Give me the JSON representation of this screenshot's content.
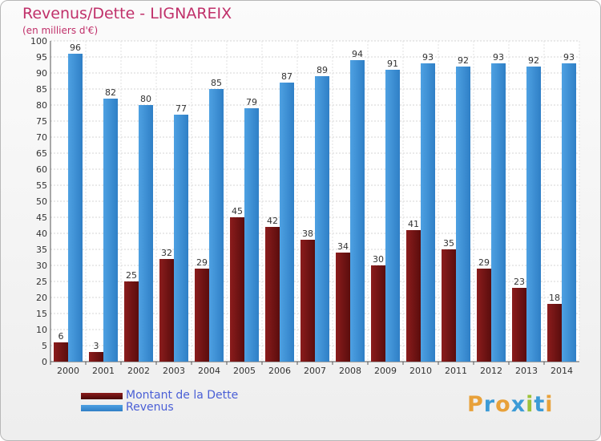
{
  "title": "Revenus/Dette - LIGNAREIX",
  "subtitle": "(en milliers d'€)",
  "logo": {
    "text": "Proxiti",
    "letters": [
      {
        "ch": "P",
        "color": "#e8a13a"
      },
      {
        "ch": "r",
        "color": "#3c9bd6"
      },
      {
        "ch": "o",
        "color": "#e8a13a"
      },
      {
        "ch": "x",
        "color": "#3c9bd6"
      },
      {
        "ch": "i",
        "color": "#9cc23a"
      },
      {
        "ch": "t",
        "color": "#3c9bd6"
      },
      {
        "ch": "i",
        "color": "#e8a13a"
      }
    ]
  },
  "colors": {
    "debt": "#8b1c1c",
    "revenue": "#4ea1e2"
  },
  "chart_data": {
    "type": "bar",
    "title": "Revenus/Dette - LIGNAREIX",
    "subtitle": "(en milliers d'€)",
    "categories": [
      "2000",
      "2001",
      "2002",
      "2003",
      "2004",
      "2005",
      "2006",
      "2007",
      "2008",
      "2009",
      "2010",
      "2011",
      "2012",
      "2013",
      "2014"
    ],
    "series": [
      {
        "name": "Montant de la Dette",
        "values": [
          6,
          3,
          25,
          32,
          29,
          45,
          42,
          38,
          34,
          30,
          41,
          35,
          29,
          23,
          18
        ]
      },
      {
        "name": "Revenus",
        "values": [
          96,
          82,
          80,
          77,
          85,
          79,
          87,
          89,
          94,
          91,
          93,
          92,
          93,
          92,
          93
        ]
      }
    ],
    "ylim": [
      0,
      100
    ],
    "yticks": [
      0,
      5,
      10,
      15,
      20,
      25,
      30,
      35,
      40,
      45,
      50,
      55,
      60,
      65,
      70,
      75,
      80,
      85,
      90,
      95,
      100
    ],
    "grid": true,
    "legend": "bottom-left"
  }
}
